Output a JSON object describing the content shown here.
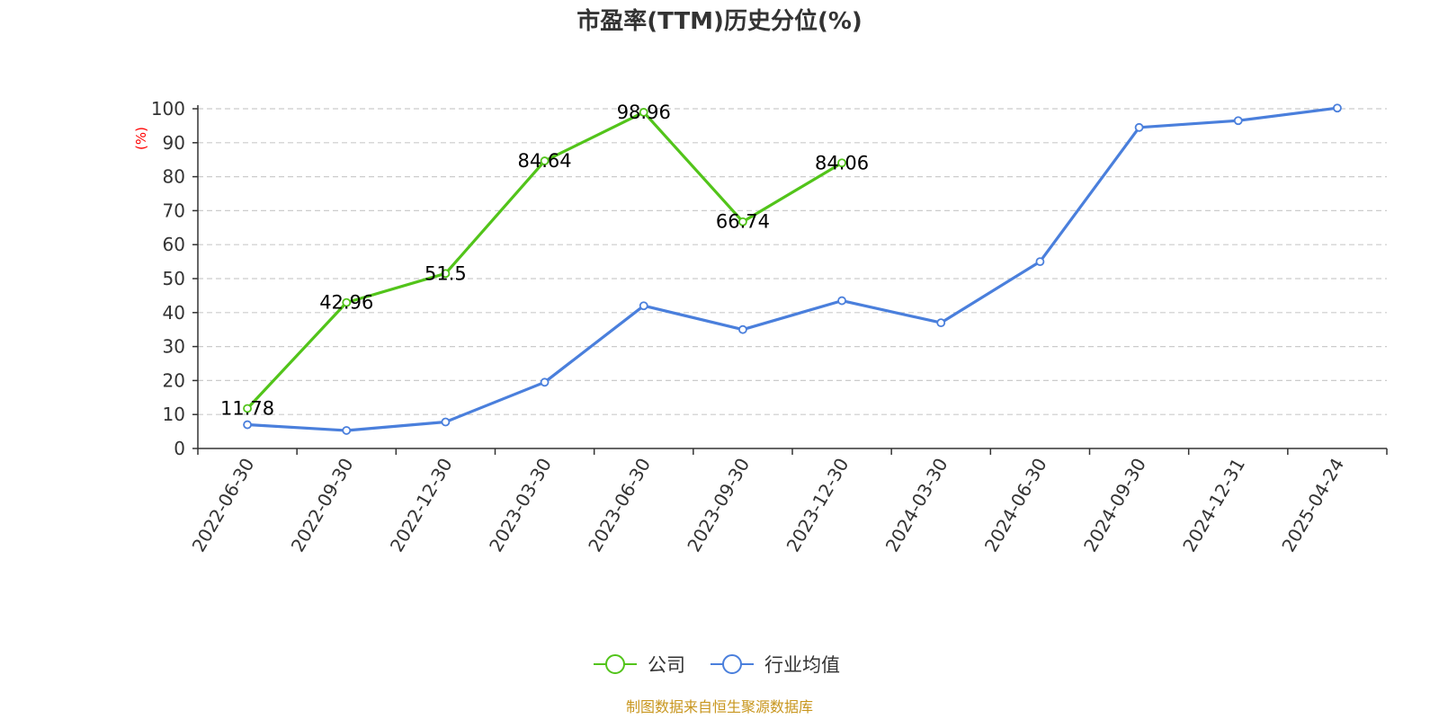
{
  "chart_data": {
    "type": "line",
    "title": "市盈率(TTM)历史分位(%)",
    "ylabel": "(%)",
    "ylim": [
      0,
      100
    ],
    "yticks": [
      0,
      10,
      20,
      30,
      40,
      50,
      60,
      70,
      80,
      90,
      100
    ],
    "grid": true,
    "legend_position": "bottom-center",
    "categories": [
      "2022-06-30",
      "2022-09-30",
      "2022-12-30",
      "2023-03-30",
      "2023-06-30",
      "2023-09-30",
      "2023-12-30",
      "2024-03-30",
      "2024-06-30",
      "2024-09-30",
      "2024-12-31",
      "2025-04-24"
    ],
    "series": [
      {
        "name": "公司",
        "color": "#52c41a",
        "show_labels": true,
        "values": [
          11.78,
          42.96,
          51.5,
          84.64,
          98.96,
          66.74,
          84.06,
          null,
          null,
          null,
          null,
          null
        ]
      },
      {
        "name": "行业均值",
        "color": "#4a7fdc",
        "show_labels": false,
        "values": [
          7,
          5.3,
          7.8,
          19.5,
          42,
          35,
          43.5,
          37,
          55,
          94.5,
          96.5,
          100.2
        ]
      }
    ]
  },
  "colors": {
    "ylabel": "#ff0000",
    "source": "#c8961e",
    "axis": "#333333",
    "grid": "#cccccc"
  },
  "source_text": "制图数据来自恒生聚源数据库"
}
